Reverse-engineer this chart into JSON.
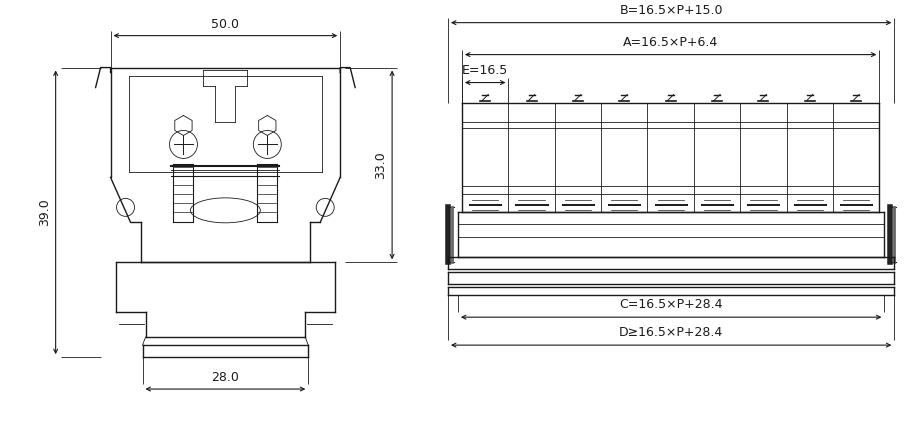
{
  "bg_color": "#ffffff",
  "line_color": "#1a1a1a",
  "gray_light": "#aaaaaa",
  "gray_med": "#777777",
  "gray_dark": "#333333",
  "left_diagram": {
    "dim_50_label": "50.0",
    "dim_39_label": "39.0",
    "dim_33_label": "33.0",
    "dim_28_label": "28.0"
  },
  "right_diagram": {
    "dim_B_label": "B=16.5×P+15.0",
    "dim_A_label": "A=16.5×P+6.4",
    "dim_E_label": "E=16.5",
    "dim_C_label": "C=16.5×P+28.4",
    "dim_D_label": "D≥16.5×P+28.4",
    "num_modules": 9
  }
}
